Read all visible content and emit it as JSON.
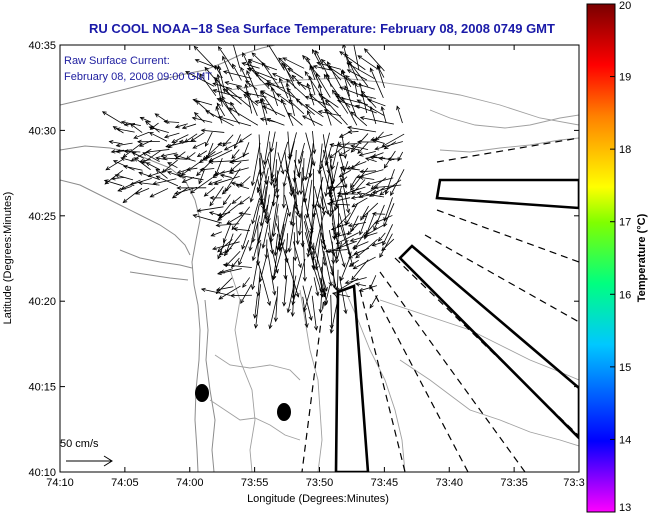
{
  "title": "RU COOL  NOAA−18  Sea Surface Temperature:  February 08, 2008 0749 GMT",
  "note_line1": "Raw Surface Current:",
  "note_line2": "February 08, 2008 09:00 GMT",
  "scale_label": "50 cm/s",
  "x_axis": {
    "label": "Longitude (Degrees:Minutes)",
    "ticks": [
      "74:10",
      "74:05",
      "74:00",
      "73:55",
      "73:50",
      "73:45",
      "73:40",
      "73:35",
      "73:3"
    ]
  },
  "y_axis": {
    "label": "Latitude (Degrees:Minutes)",
    "ticks": [
      "40:35",
      "40:30",
      "40:25",
      "40:20",
      "40:15",
      "40:10"
    ]
  },
  "colorbar": {
    "label": "Temperature (°C)",
    "ticks": [
      "20",
      "19",
      "18",
      "17",
      "16",
      "15",
      "14",
      "13"
    ],
    "min": 13,
    "max": 20,
    "colors": [
      "#ff00ff",
      "#0000ff",
      "#00c0ff",
      "#00ff80",
      "#ffff00",
      "#ff8000",
      "#ff0000",
      "#800000"
    ]
  },
  "colors": {
    "title": "#1a1aa8",
    "note": "#2020a0",
    "coast": "#909090",
    "vector": "#000000"
  }
}
